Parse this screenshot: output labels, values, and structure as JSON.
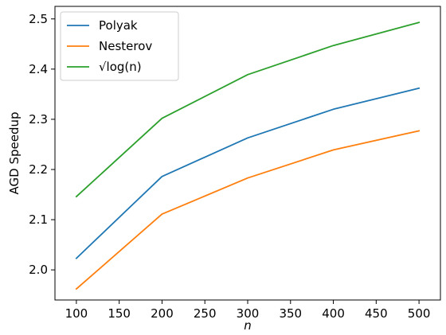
{
  "chart_data": {
    "type": "line",
    "title": "",
    "xlabel": "n",
    "ylabel": "AGD Speedup",
    "x": [
      100,
      200,
      300,
      400,
      500
    ],
    "xlim": [
      75,
      525
    ],
    "ylim": [
      1.94,
      2.525
    ],
    "xticks": [
      "100",
      "150",
      "200",
      "250",
      "300",
      "350",
      "400",
      "450",
      "500"
    ],
    "yticks": [
      "2.0",
      "2.1",
      "2.2",
      "2.3",
      "2.4",
      "2.5"
    ],
    "grid": false,
    "legend_position": "top-left",
    "series": [
      {
        "name": "Polyak",
        "color": "#1f77b4",
        "values": [
          2.023,
          2.186,
          2.263,
          2.32,
          2.362
        ]
      },
      {
        "name": "Nesterov",
        "color": "#ff7f0e",
        "values": [
          1.962,
          2.111,
          2.183,
          2.239,
          2.277
        ]
      },
      {
        "name": "√log(n)",
        "color": "#2ca02c",
        "values": [
          2.146,
          2.302,
          2.389,
          2.447,
          2.493
        ]
      }
    ]
  }
}
